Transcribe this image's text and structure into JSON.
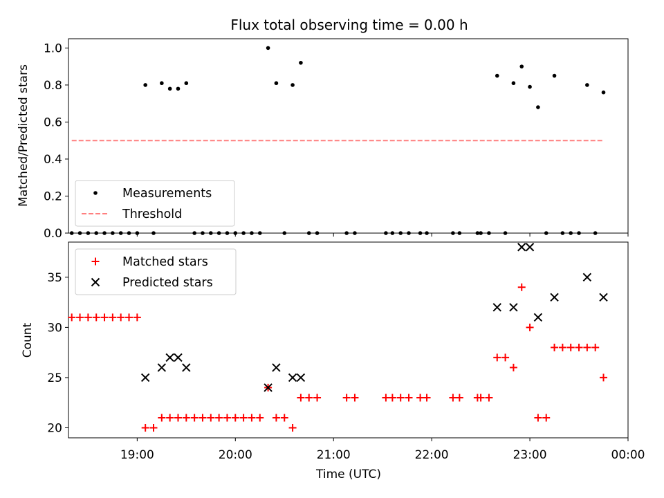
{
  "chart_data": [
    {
      "type": "scatter",
      "title": "Flux total observing time = 0.00 h",
      "xlabel": "",
      "ylabel": "Matched/Predicted stars",
      "xlim": [
        "18:18",
        "00:00"
      ],
      "ylim": [
        0,
        1.05
      ],
      "yticks": [
        "0.0",
        "0.2",
        "0.4",
        "0.6",
        "0.8",
        "1.0"
      ],
      "grid": false,
      "legend_position": "lower-left",
      "series": [
        {
          "name": "Measurements",
          "color": "#000000",
          "marker": "dot",
          "points": [
            [
              "18:20",
              0
            ],
            [
              "18:25",
              0
            ],
            [
              "18:30",
              0
            ],
            [
              "18:35",
              0
            ],
            [
              "18:40",
              0
            ],
            [
              "18:45",
              0
            ],
            [
              "18:50",
              0
            ],
            [
              "18:55",
              0
            ],
            [
              "19:00",
              0
            ],
            [
              "19:05",
              0.8
            ],
            [
              "19:10",
              0
            ],
            [
              "19:15",
              0.81
            ],
            [
              "19:20",
              0.78
            ],
            [
              "19:25",
              0.78
            ],
            [
              "19:30",
              0.81
            ],
            [
              "19:35",
              0
            ],
            [
              "19:40",
              0
            ],
            [
              "19:45",
              0
            ],
            [
              "19:50",
              0
            ],
            [
              "19:55",
              0
            ],
            [
              "20:00",
              0
            ],
            [
              "20:05",
              0
            ],
            [
              "20:10",
              0
            ],
            [
              "20:15",
              0
            ],
            [
              "20:20",
              1.0
            ],
            [
              "20:25",
              0.81
            ],
            [
              "20:30",
              0
            ],
            [
              "20:35",
              0.8
            ],
            [
              "20:40",
              0.92
            ],
            [
              "20:45",
              0
            ],
            [
              "20:50",
              0
            ],
            [
              "21:08",
              0
            ],
            [
              "21:13",
              0
            ],
            [
              "21:32",
              0
            ],
            [
              "21:36",
              0
            ],
            [
              "21:41",
              0
            ],
            [
              "21:46",
              0
            ],
            [
              "21:53",
              0
            ],
            [
              "21:57",
              0
            ],
            [
              "22:13",
              0
            ],
            [
              "22:17",
              0
            ],
            [
              "22:28",
              0
            ],
            [
              "22:30",
              0
            ],
            [
              "22:35",
              0
            ],
            [
              "22:40",
              0.85
            ],
            [
              "22:45",
              0
            ],
            [
              "22:50",
              0.81
            ],
            [
              "22:55",
              0.9
            ],
            [
              "23:00",
              0.79
            ],
            [
              "23:05",
              0.68
            ],
            [
              "23:10",
              0
            ],
            [
              "23:15",
              0.85
            ],
            [
              "23:20",
              0
            ],
            [
              "23:25",
              0
            ],
            [
              "23:30",
              0
            ],
            [
              "23:35",
              0.8
            ],
            [
              "23:40",
              0
            ],
            [
              "23:45",
              0.76
            ]
          ]
        },
        {
          "name": "Threshold",
          "color": "#ff7f7f",
          "style": "dashed",
          "x": [
            "18:20",
            "23:45"
          ],
          "y": [
            0.5,
            0.5
          ]
        }
      ]
    },
    {
      "type": "scatter",
      "title": "",
      "xlabel": "Time (UTC)",
      "ylabel": "Count",
      "xlim": [
        "18:18",
        "00:00"
      ],
      "xticks": [
        "19:00",
        "20:00",
        "21:00",
        "22:00",
        "23:00",
        "00:00"
      ],
      "ylim": [
        19,
        38.5
      ],
      "yticks": [
        "20",
        "25",
        "30",
        "35"
      ],
      "grid": false,
      "legend_position": "upper-left",
      "series": [
        {
          "name": "Matched stars",
          "color": "#ff0000",
          "marker": "plus",
          "points": [
            [
              "18:20",
              31
            ],
            [
              "18:25",
              31
            ],
            [
              "18:30",
              31
            ],
            [
              "18:35",
              31
            ],
            [
              "18:40",
              31
            ],
            [
              "18:45",
              31
            ],
            [
              "18:50",
              31
            ],
            [
              "18:55",
              31
            ],
            [
              "19:00",
              31
            ],
            [
              "19:05",
              20
            ],
            [
              "19:10",
              20
            ],
            [
              "19:15",
              21
            ],
            [
              "19:20",
              21
            ],
            [
              "19:25",
              21
            ],
            [
              "19:30",
              21
            ],
            [
              "19:35",
              21
            ],
            [
              "19:40",
              21
            ],
            [
              "19:45",
              21
            ],
            [
              "19:50",
              21
            ],
            [
              "19:55",
              21
            ],
            [
              "20:00",
              21
            ],
            [
              "20:05",
              21
            ],
            [
              "20:10",
              21
            ],
            [
              "20:15",
              21
            ],
            [
              "20:20",
              24
            ],
            [
              "20:25",
              21
            ],
            [
              "20:30",
              21
            ],
            [
              "20:35",
              20
            ],
            [
              "20:40",
              23
            ],
            [
              "20:45",
              23
            ],
            [
              "20:50",
              23
            ],
            [
              "21:08",
              23
            ],
            [
              "21:13",
              23
            ],
            [
              "21:32",
              23
            ],
            [
              "21:36",
              23
            ],
            [
              "21:41",
              23
            ],
            [
              "21:46",
              23
            ],
            [
              "21:53",
              23
            ],
            [
              "21:57",
              23
            ],
            [
              "22:13",
              23
            ],
            [
              "22:17",
              23
            ],
            [
              "22:28",
              23
            ],
            [
              "22:30",
              23
            ],
            [
              "22:35",
              23
            ],
            [
              "22:40",
              27
            ],
            [
              "22:45",
              27
            ],
            [
              "22:50",
              26
            ],
            [
              "22:55",
              34
            ],
            [
              "23:00",
              30
            ],
            [
              "23:05",
              21
            ],
            [
              "23:10",
              21
            ],
            [
              "23:15",
              28
            ],
            [
              "23:20",
              28
            ],
            [
              "23:25",
              28
            ],
            [
              "23:30",
              28
            ],
            [
              "23:35",
              28
            ],
            [
              "23:40",
              28
            ],
            [
              "23:45",
              25
            ]
          ]
        },
        {
          "name": "Predicted stars",
          "color": "#000000",
          "marker": "x",
          "points": [
            [
              "19:05",
              25
            ],
            [
              "19:15",
              26
            ],
            [
              "19:20",
              27
            ],
            [
              "19:25",
              27
            ],
            [
              "19:30",
              26
            ],
            [
              "20:20",
              24
            ],
            [
              "20:25",
              26
            ],
            [
              "20:35",
              25
            ],
            [
              "20:40",
              25
            ],
            [
              "22:40",
              32
            ],
            [
              "22:50",
              32
            ],
            [
              "22:55",
              38
            ],
            [
              "23:00",
              38
            ],
            [
              "23:05",
              31
            ],
            [
              "23:15",
              33
            ],
            [
              "23:35",
              35
            ],
            [
              "23:45",
              33
            ]
          ]
        }
      ]
    }
  ]
}
